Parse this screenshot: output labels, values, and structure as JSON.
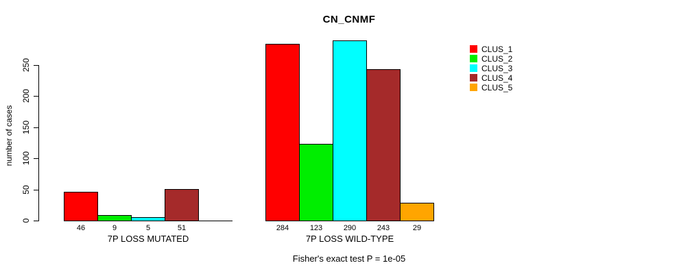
{
  "chart_data": {
    "type": "bar",
    "title": "CN_CNMF",
    "ylabel": "number of cases",
    "xlabel": "",
    "ylim": [
      0,
      290
    ],
    "grid": false,
    "legend_position": "right",
    "y_ticks": [
      "0",
      "50",
      "100",
      "150",
      "200",
      "250"
    ],
    "series": [
      "CLUS_1",
      "CLUS_2",
      "CLUS_3",
      "CLUS_4",
      "CLUS_5"
    ],
    "colors": [
      "#FF0000",
      "#00EE00",
      "#00FFFF",
      "#A52A2A",
      "#FFA500"
    ],
    "groups": [
      {
        "label": "7P LOSS MUTATED",
        "values": [
          46,
          9,
          5,
          51,
          0
        ],
        "bar_labels": [
          "46",
          "9",
          "5",
          "51",
          ""
        ]
      },
      {
        "label": "7P LOSS WILD-TYPE",
        "values": [
          284,
          123,
          290,
          243,
          29
        ],
        "bar_labels": [
          "284",
          "123",
          "290",
          "243",
          "29"
        ]
      }
    ],
    "footnote": "Fisher's exact test P = 1e-05"
  }
}
